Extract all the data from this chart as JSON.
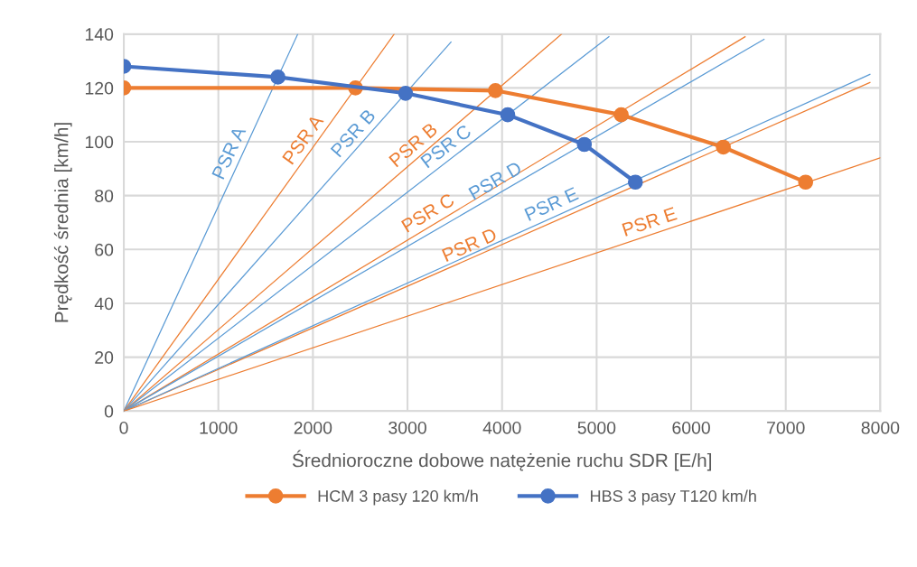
{
  "chart_data": {
    "type": "line",
    "xlabel": "Średnioroczne dobowe natężenie ruchu SDR [E/h]",
    "ylabel": "Prędkość średnia [km/h]",
    "xlim": [
      0,
      8000
    ],
    "xticks": [
      0,
      1000,
      2000,
      3000,
      4000,
      5000,
      6000,
      7000,
      8000
    ],
    "ylim": [
      0,
      140
    ],
    "yticks": [
      0,
      20,
      40,
      60,
      80,
      100,
      120,
      140
    ],
    "grid": true,
    "legend": "bottom",
    "series": [
      {
        "name": "HCM 3 pasy 120 km/h",
        "color": "#ed7d31",
        "marker": "circle",
        "x": [
          0,
          2450,
          3930,
          5260,
          6340,
          7210
        ],
        "values": [
          120,
          120,
          119,
          110,
          98,
          85
        ]
      },
      {
        "name": "HBS 3 pasy T120 km/h",
        "color": "#4472c4",
        "marker": "circle",
        "x": [
          0,
          1630,
          2980,
          4060,
          4870,
          5410
        ],
        "values": [
          128,
          124,
          118,
          110,
          99,
          85
        ]
      },
      {
        "name": "PSR A",
        "color": "#5b9bd5",
        "x": [
          0,
          1840
        ],
        "values": [
          0,
          140
        ]
      },
      {
        "name": "PSR A",
        "color": "#ed7d31",
        "x": [
          0,
          2860
        ],
        "values": [
          0,
          140
        ]
      },
      {
        "name": "PSR B",
        "color": "#5b9bd5",
        "x": [
          0,
          3460
        ],
        "values": [
          0,
          137
        ]
      },
      {
        "name": "PSR B",
        "color": "#ed7d31",
        "x": [
          0,
          4630
        ],
        "values": [
          0,
          140
        ]
      },
      {
        "name": "PSR C",
        "color": "#5b9bd5",
        "x": [
          0,
          5130
        ],
        "values": [
          0,
          139
        ]
      },
      {
        "name": "PSR C",
        "color": "#ed7d31",
        "x": [
          0,
          6570
        ],
        "values": [
          0,
          139
        ]
      },
      {
        "name": "PSR D",
        "color": "#5b9bd5",
        "x": [
          0,
          6770
        ],
        "values": [
          0,
          138
        ]
      },
      {
        "name": "PSR D",
        "color": "#ed7d31",
        "x": [
          0,
          7890
        ],
        "values": [
          0,
          122
        ]
      },
      {
        "name": "PSR E",
        "color": "#5b9bd5",
        "x": [
          0,
          7890
        ],
        "values": [
          0,
          125
        ]
      },
      {
        "name": "PSR E",
        "color": "#ed7d31",
        "x": [
          0,
          8000
        ],
        "values": [
          0,
          94
        ]
      }
    ]
  }
}
